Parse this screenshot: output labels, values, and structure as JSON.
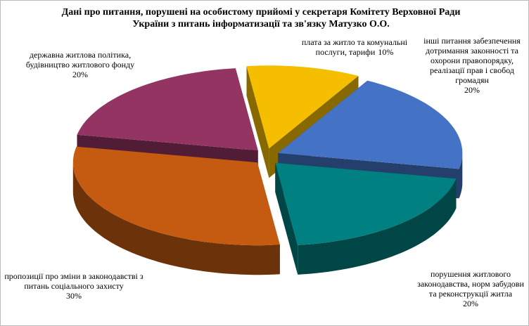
{
  "chart_data": {
    "type": "pie3d",
    "title": "Дані про питання, порушені на особистому прийомі у секретаря Комітету Верховної Ради України з питань інформатизації та зв'язку Матузко О.О.",
    "categories": [
      "плата за житло та комунальні послуги, тарифи",
      "інші питання забезпечення дотримання законності та охорони правопорядку, реалізації прав і свобод громадян",
      "порушення житлового законодавства, норм забудови та реконструкції житла",
      "пропозиції про зміни в законодавстві з питань соціального захисту",
      "державна житлова політика, будівництво житлового фонду"
    ],
    "values": [
      10,
      20,
      20,
      30,
      20
    ],
    "value_labels": [
      "10%",
      "20%",
      "20%",
      "30%",
      "20%"
    ],
    "colors": [
      "#f5bf00",
      "#4472c4",
      "#008080",
      "#c55a11",
      "#943462"
    ]
  }
}
